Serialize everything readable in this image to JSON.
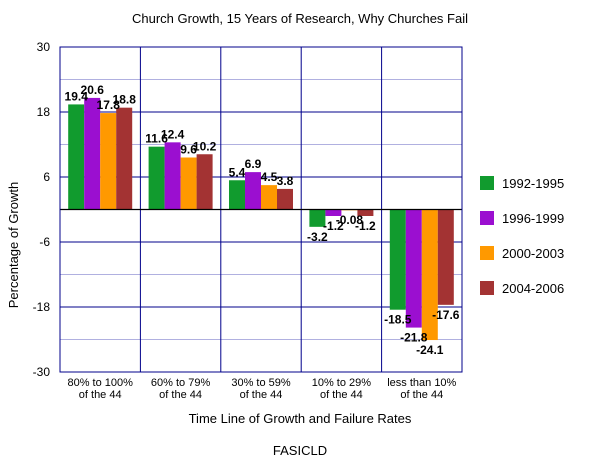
{
  "chart_data": {
    "type": "bar",
    "title": "Church Growth, 15 Years of Research, Why Churches Fail",
    "xlabel": "Time Line of Growth and Failure Rates",
    "ylabel": "Percentage of Growth",
    "footer": "FASICLD",
    "ylim": [
      -30,
      30
    ],
    "yticks": [
      "30",
      "18",
      "6",
      "-6",
      "-18",
      "-30"
    ],
    "ytick_values": [
      30,
      18,
      6,
      -6,
      -18,
      -30
    ],
    "categories": [
      [
        "80% to 100%",
        "of the 44"
      ],
      [
        "60% to 79%",
        "of the 44"
      ],
      [
        "30% to 59%",
        "of the 44"
      ],
      [
        "10% to 29%",
        "of the 44"
      ],
      [
        "less than 10%",
        "of the 44"
      ]
    ],
    "series": [
      {
        "name": "1992-1995",
        "color": "#119b2e",
        "values": [
          19.4,
          11.6,
          5.4,
          -3.2,
          -18.5
        ],
        "labels": [
          "19.4",
          "11.6",
          "5.4",
          "-3.2",
          "-18.5"
        ]
      },
      {
        "name": "1996-1999",
        "color": "#9b0fd0",
        "values": [
          20.6,
          12.4,
          6.9,
          -1.2,
          -21.8
        ],
        "labels": [
          "20.6",
          "12.4",
          "6.9",
          "-1.2",
          "-21.8"
        ]
      },
      {
        "name": "2000-2003",
        "color": "#ff9900",
        "values": [
          17.8,
          9.6,
          4.5,
          -0.08,
          -24.1
        ],
        "labels": [
          "17.8",
          "9.6",
          "4.5",
          "-0.08",
          "-24.1"
        ]
      },
      {
        "name": "2004-2006",
        "color": "#a33333",
        "values": [
          18.8,
          10.2,
          3.8,
          -1.2,
          -17.6
        ],
        "labels": [
          "18.8",
          "10.2",
          "3.8",
          "-1.2",
          "-17.6"
        ]
      }
    ]
  }
}
